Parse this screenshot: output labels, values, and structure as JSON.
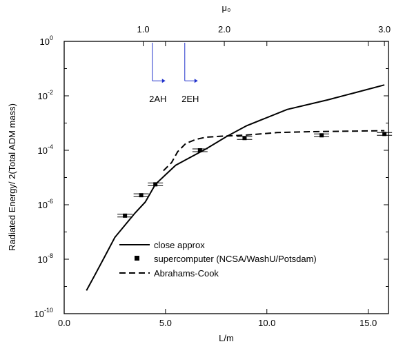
{
  "chart_data": {
    "type": "line",
    "xlabel": "L/m",
    "ylabel": "Radiated Energy/ 2(Total ADM mass)",
    "top_axis_label": "μ₀",
    "xlim": [
      0,
      16
    ],
    "ylim_log10": [
      -10,
      0
    ],
    "y_scale": "log",
    "x_ticks": [
      0,
      5,
      10,
      15
    ],
    "x_tick_labels": [
      "0.0",
      "5.0",
      "10.0",
      "15.0"
    ],
    "y_ticks_log10": [
      0,
      -2,
      -4,
      -6,
      -8,
      -10
    ],
    "y_tick_bases": [
      "10",
      "10",
      "10",
      "10",
      "10",
      "10"
    ],
    "y_tick_exponents": [
      "0",
      "-2",
      "-4",
      "-6",
      "-8",
      "-10"
    ],
    "top_ticks_x": [
      3.9,
      7.9,
      15.8
    ],
    "top_tick_labels": [
      "1.0",
      "2.0",
      "3.0"
    ],
    "grid": false,
    "legend_position": "bottom-center",
    "series": [
      {
        "name": "close approx",
        "style": "solid",
        "x": [
          1.1,
          1.5,
          2.0,
          2.5,
          3.0,
          3.5,
          4.0,
          4.5,
          5.0,
          5.5,
          6.0,
          7.0,
          8.0,
          9.0,
          11.0,
          13.0,
          15.8
        ],
        "y_log10": [
          -9.15,
          -8.6,
          -7.9,
          -7.2,
          -6.75,
          -6.3,
          -5.9,
          -5.25,
          -4.9,
          -4.55,
          -4.35,
          -3.95,
          -3.5,
          -3.1,
          -2.5,
          -2.15,
          -1.6
        ]
      },
      {
        "name": "supercomputer (NCSA/WashU/Potsdam)",
        "style": "markers",
        "x": [
          3.0,
          3.8,
          4.5,
          6.7,
          8.9,
          12.7,
          15.8
        ],
        "y_log10": [
          -6.4,
          -5.65,
          -5.25,
          -4.0,
          -3.55,
          -3.45,
          -3.4
        ]
      },
      {
        "name": "Abrahams-Cook",
        "style": "dashed",
        "x": [
          4.9,
          5.3,
          5.6,
          6.0,
          6.5,
          7.0,
          7.8,
          9.0,
          10.5,
          12.0,
          14.0,
          15.8
        ],
        "y_log10": [
          -4.75,
          -4.45,
          -4.05,
          -3.75,
          -3.6,
          -3.52,
          -3.48,
          -3.44,
          -3.35,
          -3.32,
          -3.3,
          -3.28
        ]
      }
    ],
    "annotations": [
      {
        "text": "2AH",
        "x": 4.35,
        "y_log10": -0.05
      },
      {
        "text": "2EH",
        "x": 5.95,
        "y_log10": -0.05
      }
    ]
  }
}
